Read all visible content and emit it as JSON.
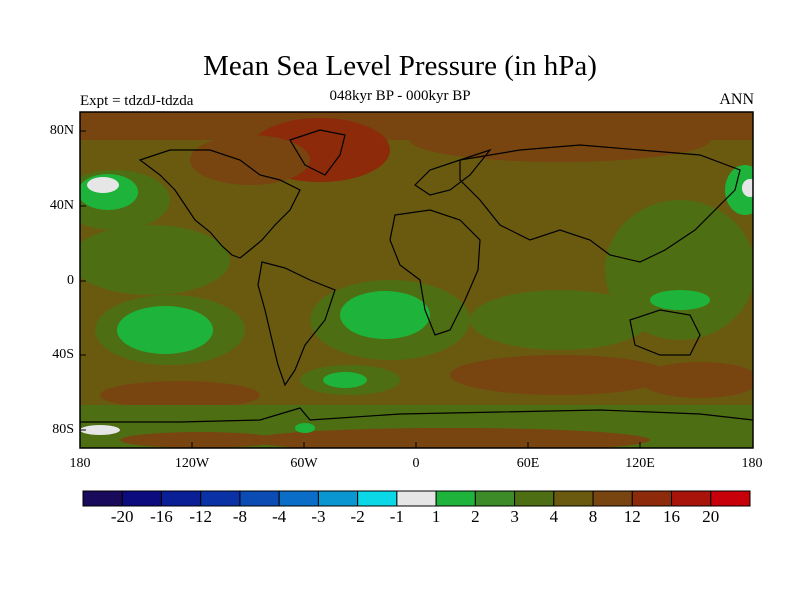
{
  "title": "Mean Sea Level Pressure (in hPa)",
  "subtitle": "048kyr BP - 000kyr BP",
  "left_label": "Expt = tdzdJ-tdzda",
  "right_label": "ANN",
  "lat_labels": [
    "80N",
    "40N",
    "0",
    "40S",
    "80S"
  ],
  "lon_labels": [
    "180",
    "120W",
    "60W",
    "0",
    "60E",
    "120E",
    "180"
  ],
  "colorbar": {
    "colors": [
      "#1a0a5c",
      "#0c0c7e",
      "#0a1e96",
      "#0a32a6",
      "#0a4cb4",
      "#0a6ec8",
      "#0a96d0",
      "#0ad8e6",
      "#e6e6e6",
      "#1eb43c",
      "#3c8a28",
      "#4e6e14",
      "#6a5a10",
      "#784410",
      "#8c2a0a",
      "#a8140a",
      "#c8000a"
    ],
    "labels": [
      "-20",
      "-16",
      "-12",
      "-8",
      "-4",
      "-3",
      "-2",
      "-1",
      "1",
      "2",
      "3",
      "4",
      "8",
      "12",
      "16",
      "20"
    ]
  }
}
